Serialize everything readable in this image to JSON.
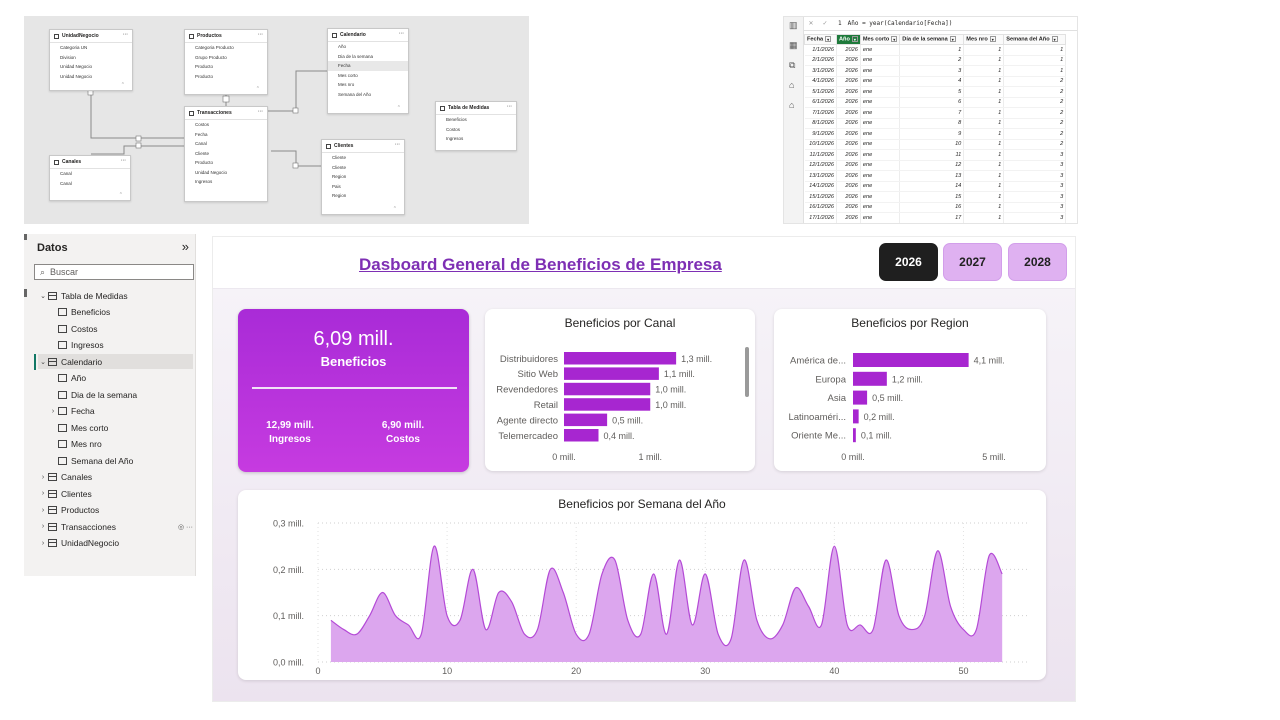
{
  "model_view": {
    "tables": [
      {
        "key": "unidad",
        "name": "UnidadNegocio",
        "fields": [
          "Categoria UN",
          "Division",
          "Unidad Negocio",
          "Unidad Negocio"
        ]
      },
      {
        "key": "productos",
        "name": "Productos",
        "fields": [
          "Categoria Producto",
          "Grupo Producto",
          "Producto",
          "Producto"
        ]
      },
      {
        "key": "calendario",
        "name": "Calendario",
        "fields": [
          "Año",
          "Dia de la semana",
          "Fecha",
          "Mes corto",
          "Mes nro",
          "Semana del Año"
        ]
      },
      {
        "key": "medidas",
        "name": "Tabla de Medidas",
        "fields": [
          "Beneficios",
          "Costos",
          "Ingresos"
        ]
      },
      {
        "key": "transacciones",
        "name": "Transacciones",
        "fields": [
          "Costos",
          "Fecha",
          "Canal",
          "Cliente",
          "Producto",
          "Unidad Negocio",
          "Ingresos"
        ]
      },
      {
        "key": "canales",
        "name": "Canales",
        "fields": [
          "Canal",
          "Canal"
        ]
      },
      {
        "key": "clientes",
        "name": "Clientes",
        "fields": [
          "Cliente",
          "Cliente",
          "Region",
          "Pais",
          "Region"
        ]
      }
    ],
    "rel_labels": [
      "1",
      "*",
      "1",
      "*",
      "1",
      "*",
      "*",
      "1"
    ]
  },
  "data_view": {
    "formula_line": "1",
    "formula": "Año = year(Calendario[Fecha])",
    "headers": [
      "Fecha",
      "Año",
      "Mes corto",
      "Día de la semana",
      "Mes nro",
      "Semana del Año"
    ],
    "rows": [
      [
        "1/1/2026",
        "2026",
        "ene",
        "1",
        "1",
        "1"
      ],
      [
        "2/1/2026",
        "2026",
        "ene",
        "2",
        "1",
        "1"
      ],
      [
        "3/1/2026",
        "2026",
        "ene",
        "3",
        "1",
        "1"
      ],
      [
        "4/1/2026",
        "2026",
        "ene",
        "4",
        "1",
        "2"
      ],
      [
        "5/1/2026",
        "2026",
        "ene",
        "5",
        "1",
        "2"
      ],
      [
        "6/1/2026",
        "2026",
        "ene",
        "6",
        "1",
        "2"
      ],
      [
        "7/1/2026",
        "2026",
        "ene",
        "7",
        "1",
        "2"
      ],
      [
        "8/1/2026",
        "2026",
        "ene",
        "8",
        "1",
        "2"
      ],
      [
        "9/1/2026",
        "2026",
        "ene",
        "9",
        "1",
        "2"
      ],
      [
        "10/1/2026",
        "2026",
        "ene",
        "10",
        "1",
        "2"
      ],
      [
        "11/1/2026",
        "2026",
        "ene",
        "11",
        "1",
        "3"
      ],
      [
        "12/1/2026",
        "2026",
        "ene",
        "12",
        "1",
        "3"
      ],
      [
        "13/1/2026",
        "2026",
        "ene",
        "13",
        "1",
        "3"
      ],
      [
        "14/1/2026",
        "2026",
        "ene",
        "14",
        "1",
        "3"
      ],
      [
        "15/1/2026",
        "2026",
        "ene",
        "15",
        "1",
        "3"
      ],
      [
        "16/1/2026",
        "2026",
        "ene",
        "16",
        "1",
        "3"
      ],
      [
        "17/1/2026",
        "2026",
        "ene",
        "17",
        "1",
        "3"
      ]
    ]
  },
  "datos_panel": {
    "title": "Datos",
    "collapse_glyph": "»",
    "search_placeholder": "Buscar",
    "items": [
      {
        "label": "Tabla de Medidas",
        "kind": "table",
        "level": 0,
        "expanded": true
      },
      {
        "label": "Beneficios",
        "kind": "measure",
        "level": 1
      },
      {
        "label": "Costos",
        "kind": "measure",
        "level": 1
      },
      {
        "label": "Ingresos",
        "kind": "measure",
        "level": 1
      },
      {
        "label": "Calendario",
        "kind": "table",
        "level": 0,
        "expanded": true,
        "selected": true
      },
      {
        "label": "Año",
        "kind": "calc",
        "level": 1
      },
      {
        "label": "Dia de la semana",
        "kind": "calc",
        "level": 1
      },
      {
        "label": "Fecha",
        "kind": "field",
        "level": 1,
        "expandable": true
      },
      {
        "label": "Mes corto",
        "kind": "calc",
        "level": 1
      },
      {
        "label": "Mes nro",
        "kind": "calc",
        "level": 1
      },
      {
        "label": "Semana del Año",
        "kind": "calc",
        "level": 1
      },
      {
        "label": "Canales",
        "kind": "table",
        "level": 0
      },
      {
        "label": "Clientes",
        "kind": "table",
        "level": 0
      },
      {
        "label": "Productos",
        "kind": "table",
        "level": 0
      },
      {
        "label": "Transacciones",
        "kind": "table",
        "level": 0,
        "hidden_icons": true
      },
      {
        "label": "UnidadNegocio",
        "kind": "table",
        "level": 0
      }
    ]
  },
  "dashboard": {
    "title": "Dasboard General de Beneficios de Empresa",
    "year_buttons": [
      {
        "label": "2026",
        "active": true
      },
      {
        "label": "2027",
        "active": false
      },
      {
        "label": "2028",
        "active": false
      }
    ],
    "kpi": {
      "main_value": "6,09 mill.",
      "main_label": "Beneficios",
      "left_value": "12,99 mill.",
      "left_label": "Ingresos",
      "right_value": "6,90 mill.",
      "right_label": "Costos"
    },
    "colors": {
      "accent": "#a726d0",
      "line_fill": "#dca6ee",
      "line_stroke": "#b44ad6",
      "title": "#7e2fb4"
    }
  },
  "chart_data": [
    {
      "type": "bar",
      "orientation": "horizontal",
      "title": "Beneficios por Canal",
      "categories": [
        "Distribuidores",
        "Sitio Web",
        "Revendedores",
        "Retail",
        "Agente directo",
        "Telemercadeo"
      ],
      "values": [
        1.3,
        1.1,
        1.0,
        1.0,
        0.5,
        0.4
      ],
      "data_labels": [
        "1,3 mill.",
        "1,1 mill.",
        "1,0 mill.",
        "1,0 mill.",
        "0,5 mill.",
        "0,4 mill."
      ],
      "xticks": [
        "0 mill.",
        "1 mill."
      ],
      "xlim": [
        0,
        1.6
      ]
    },
    {
      "type": "bar",
      "orientation": "horizontal",
      "title": "Beneficios por Region",
      "categories": [
        "América de...",
        "Europa",
        "Asia",
        "Latinoaméri...",
        "Oriente Me..."
      ],
      "values": [
        4.1,
        1.2,
        0.5,
        0.2,
        0.1
      ],
      "data_labels": [
        "4,1 mill.",
        "1,2 mill.",
        "0,5 mill.",
        "0,2 mill.",
        "0,1 mill."
      ],
      "xticks": [
        "0 mill.",
        "5 mill."
      ],
      "xlim": [
        0,
        5
      ]
    },
    {
      "type": "area",
      "title": "Beneficios por Semana del Año",
      "x": [
        1,
        2,
        3,
        4,
        5,
        6,
        7,
        8,
        9,
        10,
        11,
        12,
        13,
        14,
        15,
        16,
        17,
        18,
        19,
        20,
        21,
        22,
        23,
        24,
        25,
        26,
        27,
        28,
        29,
        30,
        31,
        32,
        33,
        34,
        35,
        36,
        37,
        38,
        39,
        40,
        41,
        42,
        43,
        44,
        45,
        46,
        47,
        48,
        49,
        50,
        51,
        52,
        53
      ],
      "values": [
        0.09,
        0.07,
        0.06,
        0.1,
        0.15,
        0.1,
        0.08,
        0.06,
        0.25,
        0.1,
        0.09,
        0.2,
        0.07,
        0.15,
        0.13,
        0.06,
        0.07,
        0.2,
        0.15,
        0.06,
        0.06,
        0.19,
        0.22,
        0.09,
        0.06,
        0.19,
        0.06,
        0.22,
        0.08,
        0.19,
        0.06,
        0.05,
        0.22,
        0.09,
        0.05,
        0.08,
        0.16,
        0.12,
        0.08,
        0.25,
        0.08,
        0.08,
        0.07,
        0.22,
        0.1,
        0.07,
        0.1,
        0.24,
        0.12,
        0.07,
        0.07,
        0.23,
        0.19
      ],
      "yticks": [
        "0,0 mill.",
        "0,1 mill.",
        "0,2 mill.",
        "0,3 mill."
      ],
      "xticks": [
        "0",
        "10",
        "20",
        "30",
        "40",
        "50"
      ],
      "ylim": [
        0,
        0.3
      ],
      "xlim": [
        0,
        55
      ],
      "grid": true
    }
  ]
}
